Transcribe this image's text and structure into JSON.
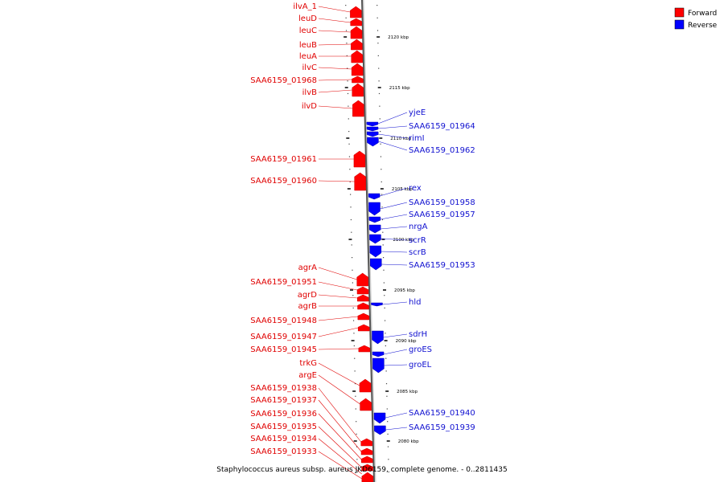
{
  "caption": "Staphylococcus aureus subsp. aureus JKD6159, complete genome. - 0..2811435",
  "legend": [
    {
      "label": "Forward",
      "color": "#ff0000"
    },
    {
      "label": "Reverse",
      "color": "#0000ff"
    }
  ],
  "scale_ticks": [
    "2120 kbp",
    "2115 kbp",
    "2110 kbp",
    "2105 kbp",
    "2100 kbp",
    "2095 kbp",
    "2090 kbp",
    "2085 kbp",
    "2080 kbp"
  ],
  "forward_labels": [
    "ilvA_1",
    "leuD",
    "leuC",
    "leuB",
    "leuA",
    "ilvC",
    "SAA6159_01968",
    "ilvB",
    "ilvD",
    "SAA6159_01961",
    "SAA6159_01960",
    "agrA",
    "SAA6159_01951",
    "agrD",
    "agrB",
    "SAA6159_01948",
    "SAA6159_01947",
    "SAA6159_01945",
    "trkG",
    "argE",
    "SAA6159_01938",
    "SAA6159_01937",
    "SAA6159_01936",
    "SAA6159_01935",
    "SAA6159_01934",
    "SAA6159_01933"
  ],
  "reverse_labels": [
    "yjeE",
    "SAA6159_01964",
    "rimI",
    "SAA6159_01962",
    "rex",
    "SAA6159_01958",
    "SAA6159_01957",
    "nrgA",
    "scrR",
    "scrB",
    "SAA6159_01953",
    "hld",
    "sdrH",
    "groES",
    "groEL",
    "SAA6159_01940",
    "SAA6159_01939"
  ]
}
